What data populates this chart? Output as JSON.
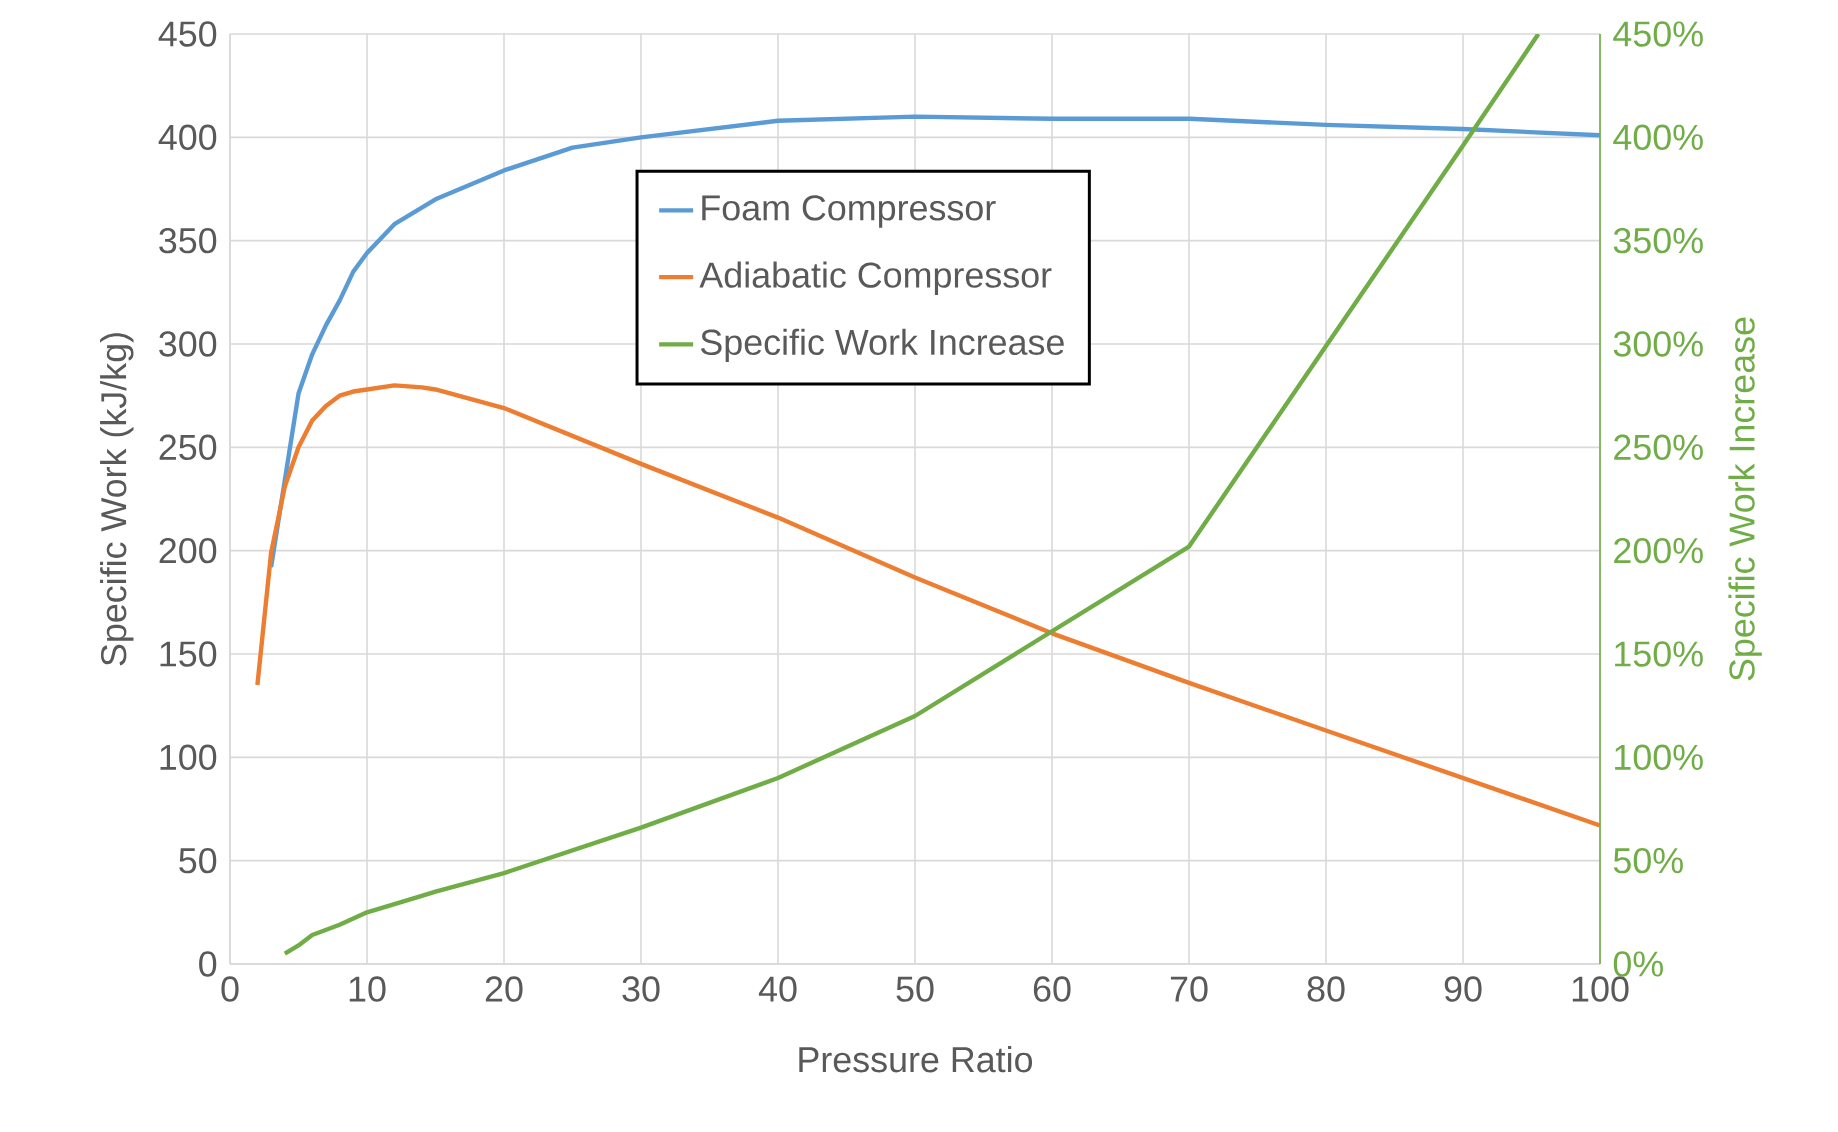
{
  "chart_data": {
    "type": "line",
    "xlabel": "Pressure Ratio",
    "ylabel": "Specific Work (kJ/kg)",
    "y2label": "Specific Work Increase",
    "xlim": [
      0,
      100
    ],
    "xticks": [
      0,
      10,
      20,
      30,
      40,
      50,
      60,
      70,
      80,
      90,
      100
    ],
    "ylim": [
      0,
      450
    ],
    "yticks": [
      0,
      50,
      100,
      150,
      200,
      250,
      300,
      350,
      400,
      450
    ],
    "y2lim": [
      0,
      450
    ],
    "y2ticks": [
      {
        "value": 0,
        "label": "0%"
      },
      {
        "value": 50,
        "label": "50%"
      },
      {
        "value": 100,
        "label": "100%"
      },
      {
        "value": 150,
        "label": "150%"
      },
      {
        "value": 200,
        "label": "200%"
      },
      {
        "value": 250,
        "label": "250%"
      },
      {
        "value": 300,
        "label": "300%"
      },
      {
        "value": 350,
        "label": "350%"
      },
      {
        "value": 400,
        "label": "400%"
      },
      {
        "value": 450,
        "label": "450%"
      }
    ],
    "grid": true,
    "legend": "top",
    "marker": "none",
    "line_style": "solid",
    "series": [
      {
        "name": "Foam Compressor",
        "color": "#5b9bd5",
        "x": [
          3,
          4,
          5,
          6,
          7,
          8,
          9,
          10,
          12,
          15,
          20,
          25,
          30,
          40,
          50,
          60,
          70,
          80,
          90,
          100
        ],
        "values": [
          192,
          234,
          276,
          295,
          309,
          321,
          335,
          344,
          358,
          370,
          384,
          395,
          400,
          408,
          410,
          409,
          409,
          406,
          404,
          401
        ]
      },
      {
        "name": "Adiabatic Compressor",
        "color": "#ed7d31",
        "x": [
          2,
          3,
          4,
          5,
          6,
          7,
          8,
          9,
          10,
          12,
          14,
          15,
          20,
          30,
          40,
          50,
          60,
          70,
          80,
          90,
          100
        ],
        "values": [
          135,
          199,
          231,
          250,
          263,
          270,
          275,
          277,
          278,
          280,
          279,
          278,
          269,
          242,
          216,
          187,
          160,
          136,
          113,
          90,
          67
        ]
      },
      {
        "name": "Specific Work Increase",
        "color": "#70ad47",
        "axis": "y2",
        "x": [
          4,
          5,
          6,
          8,
          10,
          12,
          14,
          15,
          20,
          30,
          40,
          50,
          60,
          70,
          80,
          90,
          95.5
        ],
        "values": [
          5,
          9,
          14,
          19,
          25,
          29,
          33,
          35,
          44,
          66,
          90,
          120,
          161,
          202,
          299,
          396,
          450
        ]
      }
    ]
  }
}
